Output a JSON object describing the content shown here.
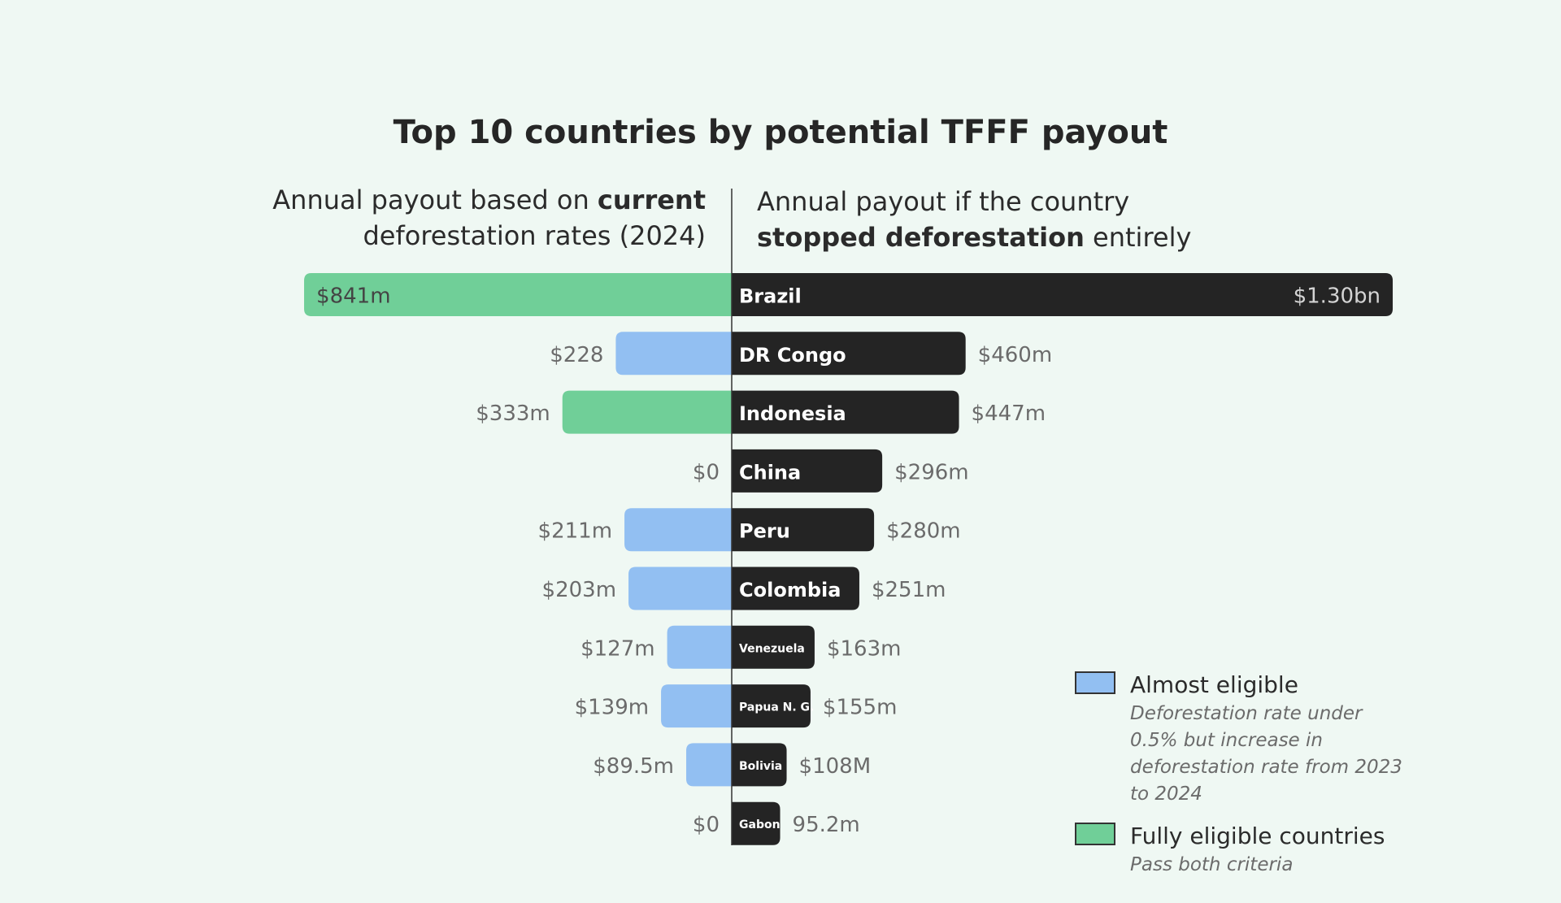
{
  "chart_data": {
    "type": "bar",
    "title": "Top 10 countries by potential TFFF payout",
    "left_header": {
      "line1_pre": "Annual payout based on ",
      "line1_bold": "current",
      "line2": "deforestation rates (2024)"
    },
    "right_header": {
      "line1": "Annual payout if the country",
      "line2_bold": "stopped deforestation",
      "line2_post": " entirely"
    },
    "categories": [
      "Brazil",
      "DR Congo",
      "Indonesia",
      "China",
      "Peru",
      "Colombia",
      "Venezuela",
      "Papua N. G.",
      "Bolivia",
      "Gabon"
    ],
    "series": [
      {
        "values": [
          841,
          228,
          333,
          0,
          211,
          203,
          127,
          139,
          89.5,
          0
        ],
        "labels": [
          "$841m",
          "$228",
          "$333m",
          "$0",
          "$211m",
          "$203m",
          "$127m",
          "$139m",
          "$89.5m",
          "$0"
        ],
        "status": [
          "fully",
          "almost",
          "fully",
          "none",
          "almost",
          "almost",
          "almost",
          "almost",
          "almost",
          "none"
        ]
      },
      {
        "values": [
          1300,
          460,
          447,
          296,
          280,
          251,
          163,
          155,
          108,
          95.2
        ],
        "labels": [
          "$1.30bn",
          "$460m",
          "$447m",
          "$296m",
          "$280m",
          "$251m",
          "$163m",
          "$155m",
          "$108M",
          "95.2m"
        ]
      }
    ],
    "legend": [
      {
        "key": "almost",
        "name": "Almost eligible",
        "description": "Deforestation rate under 0.5% but increase in deforestation rate from 2023 to 2024",
        "color": "#92bff2"
      },
      {
        "key": "fully",
        "name": "Fully eligible countries",
        "description": "Pass both criteria",
        "color": "#70cf98"
      }
    ],
    "colors": {
      "right_bar": "#242424",
      "almost": "#92bff2",
      "fully": "#70cf98",
      "value_text": "#6b6b6b",
      "axis": "#333333"
    }
  }
}
